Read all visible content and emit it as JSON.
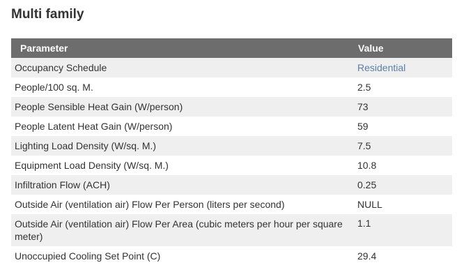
{
  "title": "Multi family",
  "table": {
    "headers": {
      "parameter": "Parameter",
      "value": "Value"
    },
    "rows": [
      {
        "parameter": "Occupancy Schedule",
        "value": "Residential",
        "is_link": true
      },
      {
        "parameter": "People/100 sq. M.",
        "value": "2.5"
      },
      {
        "parameter": "People Sensible Heat Gain (W/person)",
        "value": "73"
      },
      {
        "parameter": "People Latent Heat Gain (W/person)",
        "value": "59"
      },
      {
        "parameter": "Lighting Load Density (W/sq. M.)",
        "value": "7.5"
      },
      {
        "parameter": "Equipment Load Density (W/sq. M.)",
        "value": "10.8"
      },
      {
        "parameter": "Infiltration Flow (ACH)",
        "value": "0.25"
      },
      {
        "parameter": "Outside Air (ventilation air) Flow Per Person (liters per second)",
        "value": "NULL"
      },
      {
        "parameter": "Outside Air (ventilation air) Flow Per Area (cubic meters per hour per square meter)",
        "value": "1.1"
      },
      {
        "parameter": "Unoccupied Cooling Set Point (C)",
        "value": "29.4"
      }
    ]
  },
  "colors": {
    "header_bg": "#6d6d6d",
    "stripe_bg": "#efefef",
    "link": "#5a7fa6"
  }
}
